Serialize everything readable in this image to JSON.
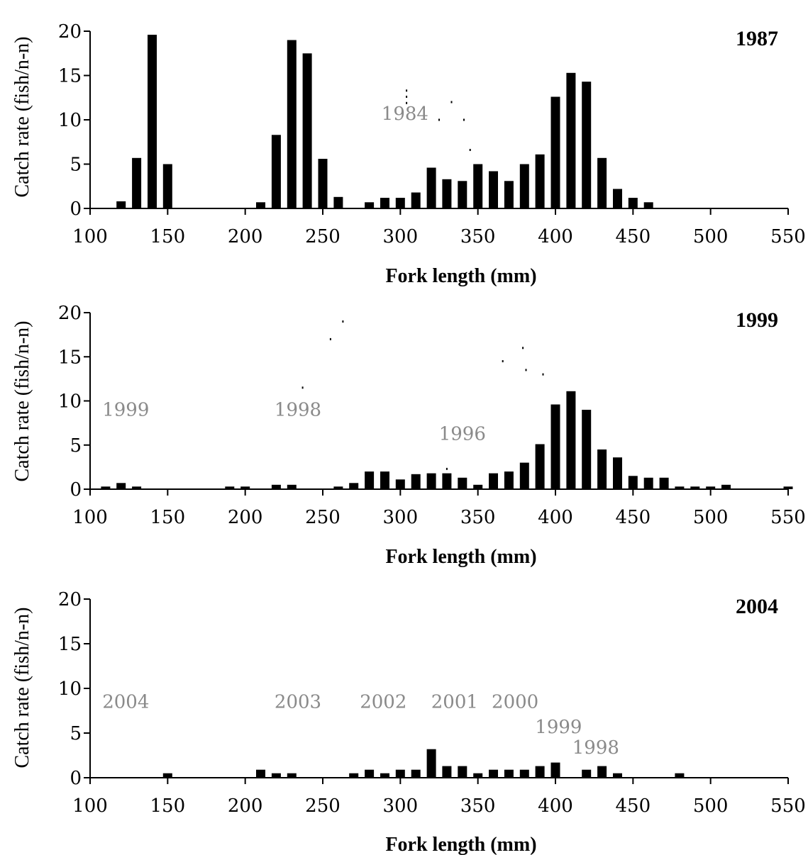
{
  "chart_data": [
    {
      "type": "bar",
      "title": "1987",
      "xlabel": "Fork length (mm)",
      "ylabel": "Catch rate (fish/n-n)",
      "xlim": [
        100,
        550
      ],
      "ylim": [
        0,
        20
      ],
      "xticks": [
        "100",
        "150",
        "200",
        "250",
        "300",
        "350",
        "400",
        "450",
        "500",
        "550"
      ],
      "yticks": [
        "0",
        "5",
        "10",
        "15",
        "20"
      ],
      "bars": [
        {
          "x": 120,
          "y": 0.8
        },
        {
          "x": 130,
          "y": 5.7
        },
        {
          "x": 140,
          "y": 19.6
        },
        {
          "x": 150,
          "y": 5.0
        },
        {
          "x": 210,
          "y": 0.7
        },
        {
          "x": 220,
          "y": 8.3
        },
        {
          "x": 230,
          "y": 19.0
        },
        {
          "x": 240,
          "y": 17.5
        },
        {
          "x": 250,
          "y": 5.6
        },
        {
          "x": 260,
          "y": 1.3
        },
        {
          "x": 280,
          "y": 0.7
        },
        {
          "x": 290,
          "y": 1.2
        },
        {
          "x": 300,
          "y": 1.2
        },
        {
          "x": 310,
          "y": 1.8
        },
        {
          "x": 320,
          "y": 4.6
        },
        {
          "x": 330,
          "y": 3.3
        },
        {
          "x": 340,
          "y": 3.1
        },
        {
          "x": 350,
          "y": 5.0
        },
        {
          "x": 360,
          "y": 4.2
        },
        {
          "x": 370,
          "y": 3.1
        },
        {
          "x": 380,
          "y": 5.0
        },
        {
          "x": 390,
          "y": 6.1
        },
        {
          "x": 400,
          "y": 12.6
        },
        {
          "x": 410,
          "y": 15.3
        },
        {
          "x": 420,
          "y": 14.3
        },
        {
          "x": 430,
          "y": 5.7
        },
        {
          "x": 440,
          "y": 2.2
        },
        {
          "x": 450,
          "y": 1.2
        },
        {
          "x": 460,
          "y": 0.7
        }
      ],
      "annotations": [
        {
          "text": "1984",
          "x": 303,
          "y": 10
        }
      ],
      "marks": [
        {
          "x": 304,
          "y": 13.3
        },
        {
          "x": 304,
          "y": 12.6
        },
        {
          "x": 304,
          "y": 11.9
        },
        {
          "x": 325,
          "y": 10.0
        },
        {
          "x": 333,
          "y": 12.0
        },
        {
          "x": 341,
          "y": 10.0
        },
        {
          "x": 345,
          "y": 6.6
        }
      ]
    },
    {
      "type": "bar",
      "title": "1999",
      "xlabel": "Fork length (mm)",
      "ylabel": "Catch rate (fish/n-n)",
      "xlim": [
        100,
        550
      ],
      "ylim": [
        0,
        20
      ],
      "xticks": [
        "100",
        "150",
        "200",
        "250",
        "300",
        "350",
        "400",
        "450",
        "500",
        "550"
      ],
      "yticks": [
        "0",
        "5",
        "10",
        "15",
        "20"
      ],
      "bars": [
        {
          "x": 110,
          "y": 0.3
        },
        {
          "x": 120,
          "y": 0.7
        },
        {
          "x": 130,
          "y": 0.3
        },
        {
          "x": 190,
          "y": 0.3
        },
        {
          "x": 200,
          "y": 0.3
        },
        {
          "x": 220,
          "y": 0.5
        },
        {
          "x": 230,
          "y": 0.5
        },
        {
          "x": 260,
          "y": 0.3
        },
        {
          "x": 270,
          "y": 0.7
        },
        {
          "x": 280,
          "y": 2.0
        },
        {
          "x": 290,
          "y": 2.0
        },
        {
          "x": 300,
          "y": 1.1
        },
        {
          "x": 310,
          "y": 1.7
        },
        {
          "x": 320,
          "y": 1.8
        },
        {
          "x": 330,
          "y": 1.8
        },
        {
          "x": 340,
          "y": 1.3
        },
        {
          "x": 350,
          "y": 0.5
        },
        {
          "x": 360,
          "y": 1.8
        },
        {
          "x": 370,
          "y": 2.0
        },
        {
          "x": 380,
          "y": 3.0
        },
        {
          "x": 390,
          "y": 5.1
        },
        {
          "x": 400,
          "y": 9.6
        },
        {
          "x": 410,
          "y": 11.1
        },
        {
          "x": 420,
          "y": 9.0
        },
        {
          "x": 430,
          "y": 4.5
        },
        {
          "x": 440,
          "y": 3.6
        },
        {
          "x": 450,
          "y": 1.5
        },
        {
          "x": 460,
          "y": 1.3
        },
        {
          "x": 470,
          "y": 1.3
        },
        {
          "x": 480,
          "y": 0.3
        },
        {
          "x": 490,
          "y": 0.3
        },
        {
          "x": 500,
          "y": 0.3
        },
        {
          "x": 510,
          "y": 0.5
        },
        {
          "x": 550,
          "y": 0.3
        }
      ],
      "annotations": [
        {
          "text": "1999",
          "x": 123,
          "y": 8.3
        },
        {
          "text": "1998",
          "x": 234,
          "y": 8.3
        },
        {
          "text": "1996",
          "x": 340,
          "y": 5.6
        }
      ],
      "marks": [
        {
          "x": 237,
          "y": 11.5
        },
        {
          "x": 255,
          "y": 17.0
        },
        {
          "x": 263,
          "y": 19.0
        },
        {
          "x": 366,
          "y": 14.5
        },
        {
          "x": 379,
          "y": 16.0
        },
        {
          "x": 381,
          "y": 13.5
        },
        {
          "x": 392,
          "y": 13.0
        },
        {
          "x": 330,
          "y": 2.3
        }
      ]
    },
    {
      "type": "bar",
      "title": "2004",
      "xlabel": "Fork length (mm)",
      "ylabel": "Catch rate (fish/n-n)",
      "xlim": [
        100,
        550
      ],
      "ylim": [
        0,
        20
      ],
      "xticks": [
        "100",
        "150",
        "200",
        "250",
        "300",
        "350",
        "400",
        "450",
        "500",
        "550"
      ],
      "yticks": [
        "0",
        "5",
        "10",
        "15",
        "20"
      ],
      "bars": [
        {
          "x": 150,
          "y": 0.5
        },
        {
          "x": 210,
          "y": 0.9
        },
        {
          "x": 220,
          "y": 0.5
        },
        {
          "x": 230,
          "y": 0.5
        },
        {
          "x": 270,
          "y": 0.5
        },
        {
          "x": 280,
          "y": 0.9
        },
        {
          "x": 290,
          "y": 0.5
        },
        {
          "x": 300,
          "y": 0.9
        },
        {
          "x": 310,
          "y": 0.9
        },
        {
          "x": 320,
          "y": 3.2
        },
        {
          "x": 330,
          "y": 1.3
        },
        {
          "x": 340,
          "y": 1.3
        },
        {
          "x": 350,
          "y": 0.5
        },
        {
          "x": 360,
          "y": 0.9
        },
        {
          "x": 370,
          "y": 0.9
        },
        {
          "x": 380,
          "y": 0.9
        },
        {
          "x": 390,
          "y": 1.3
        },
        {
          "x": 400,
          "y": 1.7
        },
        {
          "x": 420,
          "y": 0.9
        },
        {
          "x": 430,
          "y": 1.3
        },
        {
          "x": 440,
          "y": 0.5
        },
        {
          "x": 480,
          "y": 0.5
        }
      ],
      "annotations": [
        {
          "text": "2004",
          "x": 123,
          "y": 7.8
        },
        {
          "text": "2003",
          "x": 234,
          "y": 7.8
        },
        {
          "text": "2002",
          "x": 289,
          "y": 7.8
        },
        {
          "text": "2001",
          "x": 335,
          "y": 7.8
        },
        {
          "text": "2000",
          "x": 374,
          "y": 7.8
        },
        {
          "text": "1999",
          "x": 402,
          "y": 5.0
        },
        {
          "text": "1998",
          "x": 426,
          "y": 2.7
        }
      ],
      "marks": []
    }
  ]
}
